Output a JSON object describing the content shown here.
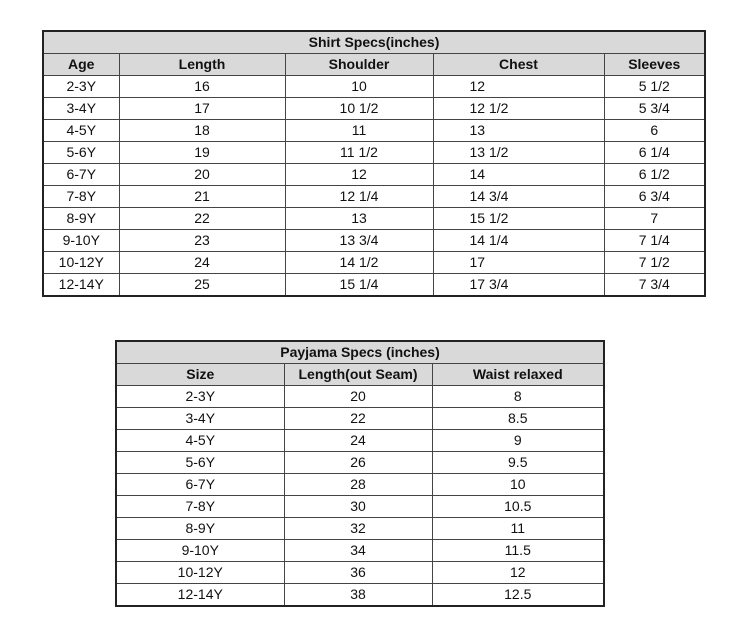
{
  "shirt_table": {
    "title": "Shirt Specs(inches)",
    "headers": [
      "Age",
      "Length",
      "Shoulder",
      "Chest",
      "Sleeves"
    ],
    "rows": [
      [
        "2-3Y",
        "16",
        "10",
        "12",
        "5 1/2"
      ],
      [
        "3-4Y",
        "17",
        "10 1/2",
        "12 1/2",
        "5 3/4"
      ],
      [
        "4-5Y",
        "18",
        "11",
        "13",
        "6"
      ],
      [
        "5-6Y",
        "19",
        "11 1/2",
        "13 1/2",
        "6 1/4"
      ],
      [
        "6-7Y",
        "20",
        "12",
        "14",
        "6 1/2"
      ],
      [
        "7-8Y",
        "21",
        "12 1/4",
        "14 3/4",
        "6 3/4"
      ],
      [
        "8-9Y",
        "22",
        "13",
        "15 1/2",
        "7"
      ],
      [
        "9-10Y",
        "23",
        "13 3/4",
        "14 1/4",
        "7 1/4"
      ],
      [
        "10-12Y",
        "24",
        "14 1/2",
        "17",
        "7 1/2"
      ],
      [
        "12-14Y",
        "25",
        "15 1/4",
        "17 3/4",
        "7 3/4"
      ]
    ]
  },
  "payjama_table": {
    "title": "Payjama Specs (inches)",
    "headers": [
      "Size",
      "Length(out Seam)",
      "Waist relaxed"
    ],
    "rows": [
      [
        "2-3Y",
        "20",
        "8"
      ],
      [
        "3-4Y",
        "22",
        "8.5"
      ],
      [
        "4-5Y",
        "24",
        "9"
      ],
      [
        "5-6Y",
        "26",
        "9.5"
      ],
      [
        "6-7Y",
        "28",
        "10"
      ],
      [
        "7-8Y",
        "30",
        "10.5"
      ],
      [
        "8-9Y",
        "32",
        "11"
      ],
      [
        "9-10Y",
        "34",
        "11.5"
      ],
      [
        "10-12Y",
        "36",
        "12"
      ],
      [
        "12-14Y",
        "38",
        "12.5"
      ]
    ]
  },
  "colors": {
    "header_bg": "#d9d9d9",
    "border": "#222222"
  }
}
